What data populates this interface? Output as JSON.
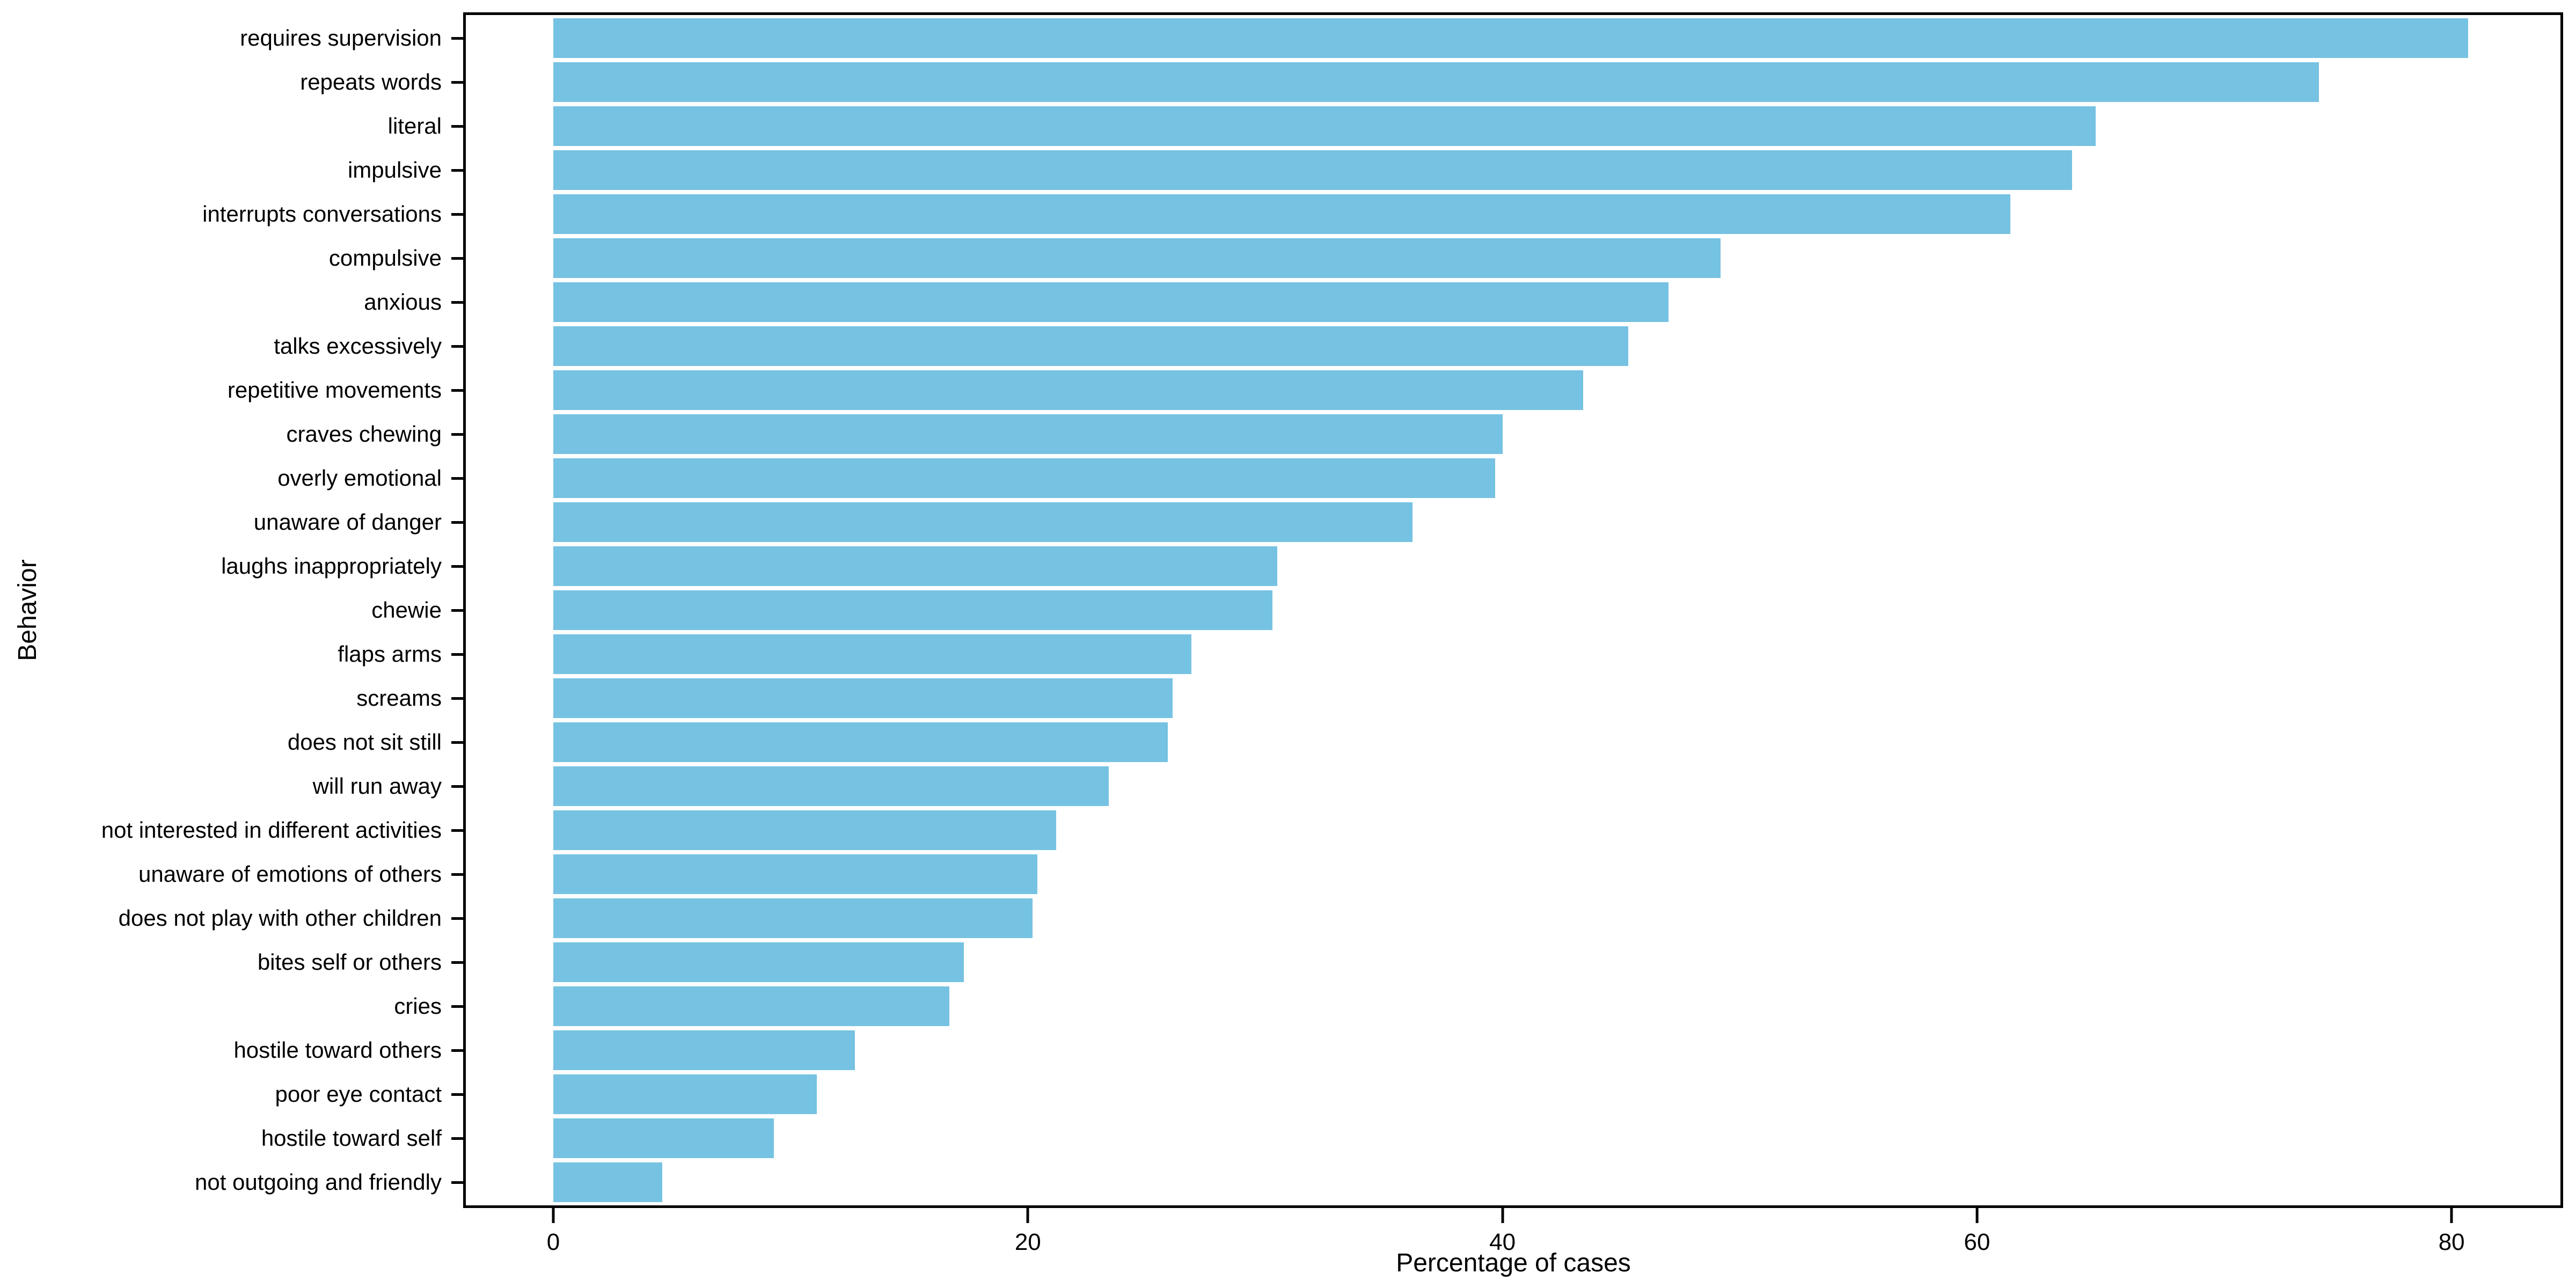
{
  "figure": {
    "background_color": "#ffffff",
    "axis_color": "#000000",
    "text_color": "#000000"
  },
  "chart_data": {
    "type": "bar",
    "orientation": "horizontal",
    "title": "",
    "xlabel": "Percentage of cases",
    "ylabel": "Behavior",
    "x_ticks": [
      0,
      20,
      40,
      60,
      80
    ],
    "xlim": [
      -3.8,
      84.7
    ],
    "grid": false,
    "legend": false,
    "bar_color": "#76C2E2",
    "categories": [
      "requires supervision",
      "repeats words",
      "literal",
      "impulsive",
      "interrupts conversations",
      "compulsive",
      "anxious",
      "talks excessively",
      "repetitive movements",
      "craves chewing",
      "overly emotional",
      "unaware of danger",
      "laughs inappropriately",
      "chewie",
      "flaps arms",
      "screams",
      "does not sit still",
      "will run away",
      "not interested in different activities",
      "unaware of emotions of others",
      "does not play with other children",
      "bites self or others",
      "cries",
      "hostile toward others",
      "poor eye contact",
      "hostile toward self",
      "not outgoing and friendly"
    ],
    "values": [
      80.7,
      74.4,
      65.0,
      64.0,
      61.4,
      49.2,
      47.0,
      45.3,
      43.4,
      40.0,
      39.7,
      36.2,
      30.5,
      30.3,
      26.9,
      26.1,
      25.9,
      23.4,
      21.2,
      20.4,
      20.2,
      17.3,
      16.7,
      12.7,
      11.1,
      9.3,
      4.6
    ]
  }
}
